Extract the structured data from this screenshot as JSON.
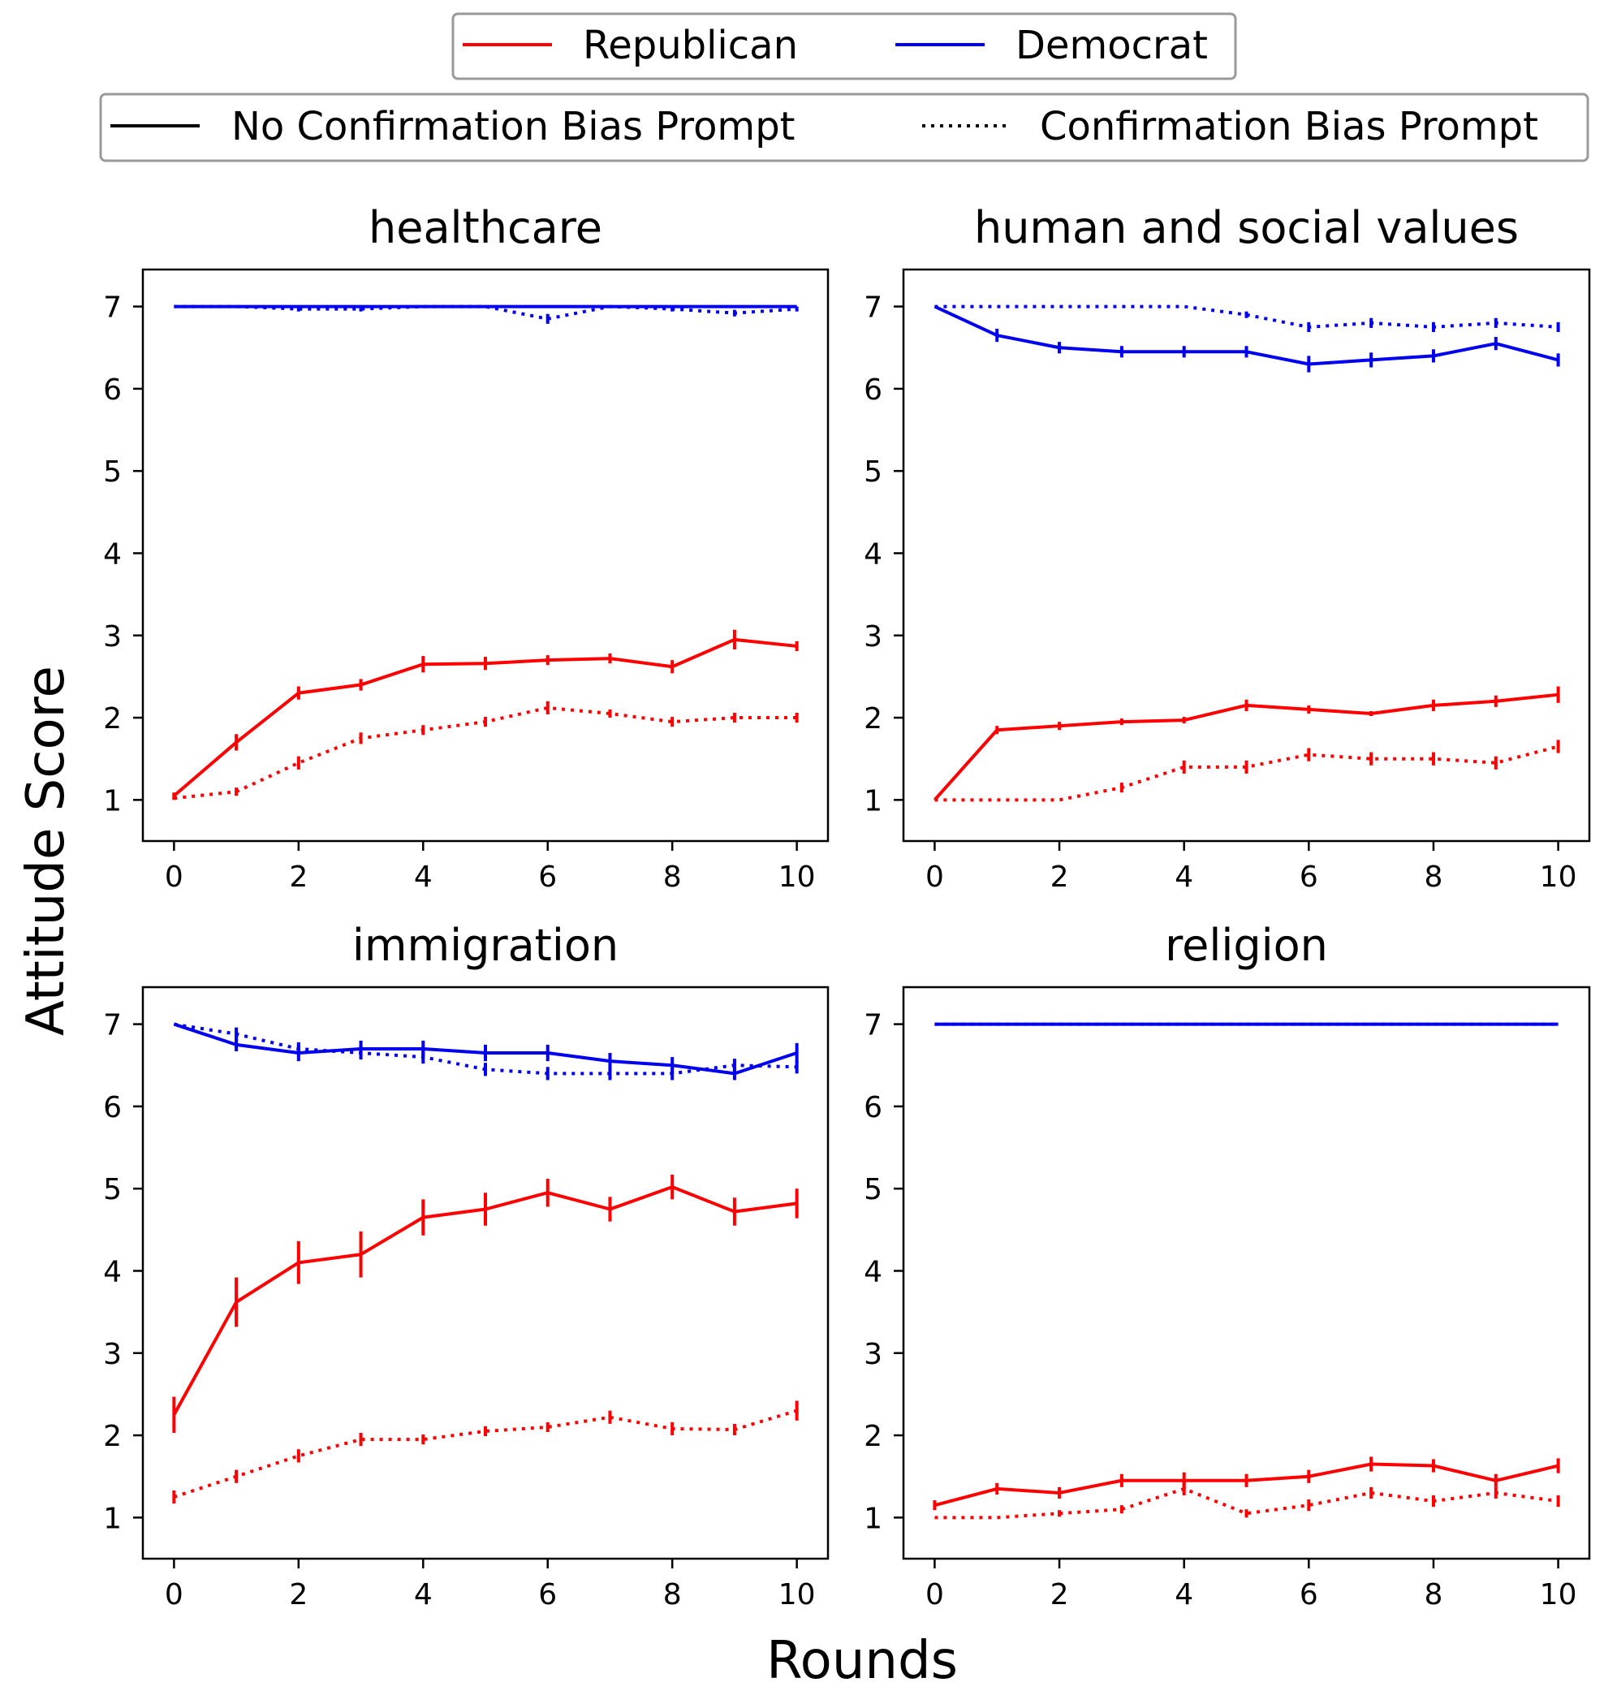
{
  "legend_party": {
    "republican": "Republican",
    "democrat": "Democrat"
  },
  "legend_style": {
    "no_bias": "No Confirmation Bias Prompt",
    "bias": "Confirmation Bias Prompt"
  },
  "colors": {
    "republican": "#ff0000",
    "democrat": "#0000ee"
  },
  "chart_data": {
    "type": "line",
    "ylabel": "Attitude Score",
    "xlabel": "Rounds",
    "xlim": [
      -0.5,
      10.5
    ],
    "ylim": [
      0.5,
      7.45
    ],
    "xticks": [
      0,
      2,
      4,
      6,
      8,
      10
    ],
    "yticks": [
      1,
      2,
      3,
      4,
      5,
      6,
      7
    ],
    "x": [
      0,
      1,
      2,
      3,
      4,
      5,
      6,
      7,
      8,
      9,
      10
    ],
    "panels": [
      {
        "title": "healthcare",
        "series": [
          {
            "name": "Democrat",
            "party": "democrat",
            "style": "solid",
            "values": [
              7,
              7,
              7,
              7,
              7,
              7,
              7,
              7,
              7,
              7,
              7
            ],
            "errors": [
              0,
              0,
              0,
              0,
              0,
              0,
              0,
              0,
              0,
              0,
              0
            ]
          },
          {
            "name": "Democrat",
            "party": "democrat",
            "style": "dotted",
            "values": [
              7,
              7,
              6.97,
              6.97,
              7,
              7,
              6.85,
              7,
              6.97,
              6.92,
              6.97
            ],
            "errors": [
              0,
              0,
              0.03,
              0.03,
              0,
              0,
              0.06,
              0,
              0.03,
              0.04,
              0.03
            ]
          },
          {
            "name": "Republican",
            "party": "republican",
            "style": "solid",
            "values": [
              1.05,
              1.7,
              2.3,
              2.4,
              2.65,
              2.66,
              2.7,
              2.72,
              2.62,
              2.95,
              2.87
            ],
            "errors": [
              0.04,
              0.1,
              0.08,
              0.07,
              0.1,
              0.08,
              0.06,
              0.06,
              0.08,
              0.12,
              0.06
            ]
          },
          {
            "name": "Republican",
            "party": "republican",
            "style": "dotted",
            "values": [
              1.02,
              1.1,
              1.45,
              1.75,
              1.85,
              1.95,
              2.12,
              2.05,
              1.95,
              2.0,
              2.0
            ],
            "errors": [
              0.02,
              0.05,
              0.08,
              0.07,
              0.06,
              0.06,
              0.08,
              0.05,
              0.06,
              0.06,
              0.06
            ]
          }
        ]
      },
      {
        "title": "human and social values",
        "series": [
          {
            "name": "Democrat",
            "party": "democrat",
            "style": "dotted",
            "values": [
              7,
              7,
              7,
              7,
              7,
              6.9,
              6.75,
              6.8,
              6.75,
              6.8,
              6.75
            ],
            "errors": [
              0,
              0,
              0,
              0,
              0,
              0.04,
              0.06,
              0.06,
              0.06,
              0.06,
              0.06
            ]
          },
          {
            "name": "Democrat",
            "party": "democrat",
            "style": "solid",
            "values": [
              7,
              6.65,
              6.5,
              6.45,
              6.45,
              6.45,
              6.3,
              6.35,
              6.4,
              6.55,
              6.35
            ],
            "errors": [
              0,
              0.08,
              0.07,
              0.07,
              0.07,
              0.07,
              0.1,
              0.09,
              0.08,
              0.08,
              0.08
            ]
          },
          {
            "name": "Republican",
            "party": "republican",
            "style": "solid",
            "values": [
              1.0,
              1.85,
              1.9,
              1.95,
              1.97,
              2.15,
              2.1,
              2.05,
              2.15,
              2.2,
              2.28
            ],
            "errors": [
              0,
              0.05,
              0.05,
              0.04,
              0.04,
              0.07,
              0.05,
              0.03,
              0.07,
              0.07,
              0.1
            ]
          },
          {
            "name": "Republican",
            "party": "republican",
            "style": "dotted",
            "values": [
              1.0,
              1.0,
              1.0,
              1.15,
              1.4,
              1.4,
              1.55,
              1.5,
              1.5,
              1.45,
              1.65
            ],
            "errors": [
              0,
              0,
              0,
              0.06,
              0.08,
              0.08,
              0.08,
              0.08,
              0.08,
              0.08,
              0.08
            ]
          }
        ]
      },
      {
        "title": "immigration",
        "series": [
          {
            "name": "Democrat",
            "party": "democrat",
            "style": "dotted",
            "values": [
              7,
              6.88,
              6.7,
              6.65,
              6.6,
              6.45,
              6.4,
              6.4,
              6.4,
              6.5,
              6.48
            ],
            "errors": [
              0,
              0.08,
              0.08,
              0.08,
              0.08,
              0.08,
              0.08,
              0.08,
              0.08,
              0.08,
              0.08
            ]
          },
          {
            "name": "Democrat",
            "party": "democrat",
            "style": "solid",
            "values": [
              7,
              6.75,
              6.65,
              6.7,
              6.7,
              6.65,
              6.65,
              6.55,
              6.5,
              6.4,
              6.65
            ],
            "errors": [
              0,
              0.08,
              0.1,
              0.1,
              0.1,
              0.1,
              0.1,
              0.1,
              0.1,
              0.08,
              0.12
            ]
          },
          {
            "name": "Republican",
            "party": "republican",
            "style": "solid",
            "values": [
              2.25,
              3.62,
              4.1,
              4.2,
              4.65,
              4.75,
              4.95,
              4.75,
              5.02,
              4.72,
              4.82
            ],
            "errors": [
              0.22,
              0.3,
              0.26,
              0.28,
              0.22,
              0.2,
              0.17,
              0.15,
              0.15,
              0.17,
              0.18
            ]
          },
          {
            "name": "Republican",
            "party": "republican",
            "style": "dotted",
            "values": [
              1.25,
              1.5,
              1.75,
              1.95,
              1.95,
              2.05,
              2.1,
              2.22,
              2.08,
              2.07,
              2.3
            ],
            "errors": [
              0.08,
              0.08,
              0.08,
              0.08,
              0.06,
              0.06,
              0.06,
              0.08,
              0.08,
              0.07,
              0.12
            ]
          }
        ]
      },
      {
        "title": "religion",
        "series": [
          {
            "name": "Democrat",
            "party": "democrat",
            "style": "solid",
            "values": [
              7,
              7,
              7,
              7,
              7,
              7,
              7,
              7,
              7,
              7,
              7
            ],
            "errors": [
              0,
              0,
              0,
              0,
              0,
              0,
              0,
              0,
              0,
              0,
              0
            ]
          },
          {
            "name": "Democrat",
            "party": "democrat",
            "style": "dotted",
            "values": [
              7,
              7,
              7,
              7,
              7,
              7,
              7,
              7,
              7,
              7,
              7
            ],
            "errors": [
              0,
              0,
              0,
              0,
              0,
              0,
              0,
              0,
              0,
              0,
              0
            ]
          },
          {
            "name": "Republican",
            "party": "republican",
            "style": "solid",
            "values": [
              1.15,
              1.35,
              1.3,
              1.45,
              1.45,
              1.45,
              1.5,
              1.65,
              1.63,
              1.45,
              1.63
            ],
            "errors": [
              0.06,
              0.07,
              0.07,
              0.08,
              0.1,
              0.08,
              0.08,
              0.09,
              0.08,
              0.08,
              0.09
            ]
          },
          {
            "name": "Republican",
            "party": "republican",
            "style": "dotted",
            "values": [
              1.0,
              1.0,
              1.05,
              1.1,
              1.35,
              1.05,
              1.15,
              1.3,
              1.2,
              1.3,
              1.2
            ],
            "errors": [
              0,
              0,
              0.04,
              0.05,
              0.08,
              0.05,
              0.07,
              0.07,
              0.07,
              0.07,
              0.07
            ]
          }
        ]
      }
    ]
  }
}
